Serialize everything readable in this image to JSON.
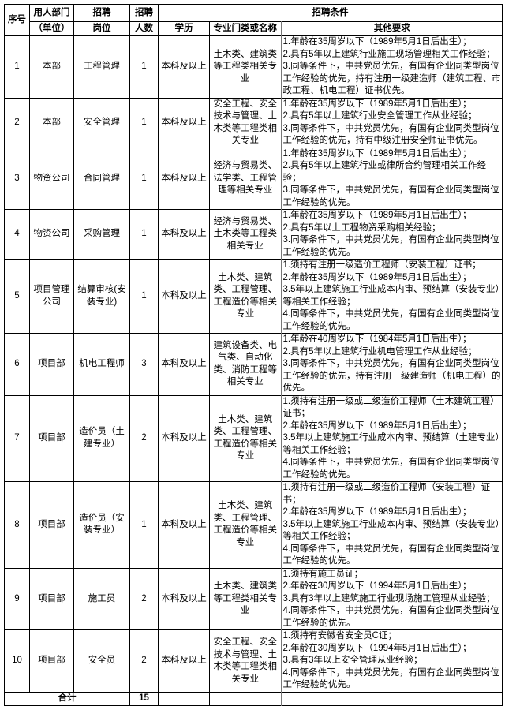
{
  "header": {
    "seq": "序号",
    "dept_line1": "用人部门",
    "dept_line2": "（单位）",
    "post_line1": "招聘",
    "post_line2": "岗位",
    "count_line1": "招聘",
    "count_line2": "人数",
    "conditions": "招聘条件",
    "education": "学历",
    "major": "专业门类或名称",
    "other": "其他要求"
  },
  "rows": [
    {
      "seq": "1",
      "dept": "本部",
      "post": "工程管理",
      "count": "1",
      "education": "本科及以上",
      "major": "土木类、建筑类等工程类相关专业",
      "requirements": [
        "1.年龄在35周岁以下（1989年5月1日后出生）；",
        "2.具有5年以上建筑行业施工现场管理相关工作经验；",
        "3.同等条件下，中共党员优先，有国有企业同类型岗位工作经验的优先，持有注册一级建造师（建筑工程、市政工程、机电工程）证书优先。"
      ]
    },
    {
      "seq": "2",
      "dept": "本部",
      "post": "安全管理",
      "count": "1",
      "education": "本科及以上",
      "major": "安全工程、安全技术与管理、土木类等工程类相关专业",
      "requirements": [
        "1.年龄在35周岁以下（1989年5月1日后出生）；",
        "2.具有5年以上建筑行业安全管理工作从业经验；",
        "3.同等条件下，中共党员优先，有国有企业同类型岗位工作经验的优先，持有中级注册安全师证书优先。"
      ]
    },
    {
      "seq": "3",
      "dept": "物资公司",
      "post": "合同管理",
      "count": "1",
      "education": "本科及以上",
      "major": "经济与贸易类、法学类、工程管理等相关专业",
      "requirements": [
        "1.年龄在35周岁以下（1989年5月1日后出生）；",
        "2.具有5年以上建筑行业或律所合约管理相关工作经验；",
        "3.同等条件下，中共党员优先，有国有企业同类型岗位工作经验的优先。"
      ]
    },
    {
      "seq": "4",
      "dept": "物资公司",
      "post": "采购管理",
      "count": "1",
      "education": "本科及以上",
      "major": "经济与贸易类、土木类等工程类相关专业",
      "requirements": [
        "1.年龄在35周岁以下（1989年5月1日后出生）；",
        "2.具有5年以上工程物资采购相关经验；",
        "3.同等条件下，中共党员优先，有国有企业同类型岗位工作经验的优先。"
      ]
    },
    {
      "seq": "5",
      "dept": "项目管理公司",
      "post": "结算审核(安装专业)",
      "count": "1",
      "education": "本科及以上",
      "major": "土木类、建筑类、工程管理、工程造价等相关专业",
      "requirements": [
        "1.须持有注册一级造价工程师（安装工程）证书；",
        "2.年龄在35周岁以下（1989年5月1日后出生）；",
        "3.5年以上建筑施工行业成本内审、预结算（安装专业）等相关工作经验；",
        "4.同等条件下，中共党员优先，有国有企业同类型岗位工作经验的优先。"
      ]
    },
    {
      "seq": "6",
      "dept": "项目部",
      "post": "机电工程师",
      "count": "3",
      "education": "本科及以上",
      "major": "建筑设备类、电气类、自动化类、消防工程等相关专业",
      "requirements": [
        "1.年龄在40周岁以下（1984年5月1日后出生）；",
        "2.具有5年以上建筑行业机电管理工作从业经验；",
        "3.同等条件下，中共党员优先，有国有企业同类型岗位工作经验的优先，持有注册一级建造师（机电工程）的优先。"
      ]
    },
    {
      "seq": "7",
      "dept": "项目部",
      "post": "造价员（土建专业）",
      "count": "2",
      "education": "本科及以上",
      "major": "土木类、建筑类、工程管理、工程造价等相关专业",
      "requirements": [
        "1.须持有注册一级或二级造价工程师（土木建筑工程）证书；",
        "2.年龄在35周岁以下（1989年5月1日后出生）；",
        "3.5年以上建筑施工行业成本内审、预结算（土建专业）等相关工作经验；",
        "4.同等条件下，中共党员优先，有国有企业同类型岗位工作经验的优先。"
      ]
    },
    {
      "seq": "8",
      "dept": "项目部",
      "post": "造价员（安装专业）",
      "count": "1",
      "education": "本科及以上",
      "major": "土木类、建筑类、工程管理、工程造价等相关专业",
      "requirements": [
        "1.须持有注册一级或二级造价工程师（安装工程）证书；",
        "2.年龄在35周岁以下（1989年5月1日后出生）；",
        "3.5年以上建筑施工行业成本内审、预结算（安装专业）等相关工作经验；",
        "4.同等条件下，中共党员优先，有国有企业同类型岗位工作经验的优先。"
      ]
    },
    {
      "seq": "9",
      "dept": "项目部",
      "post": "施工员",
      "count": "2",
      "education": "本科及以上",
      "major": "土木类、建筑类等工程类相关专业",
      "requirements": [
        "1.须持有施工员证；",
        "2.年龄在30周岁以下（1994年5月1日后出生）；",
        "3.具有3年以上建筑施工行业现场施工管理从业经验；",
        "4.同等条件下，中共党员优先，有国有企业同类型岗位工作经验的优先。"
      ]
    },
    {
      "seq": "10",
      "dept": "项目部",
      "post": "安全员",
      "count": "2",
      "education": "本科及以上",
      "major": "安全工程、安全技术与管理、土木类等工程类相关专业",
      "requirements": [
        "1.须持有安徽省安全员C证；",
        "2.年龄在30周岁以下（1994年5月1日后出生）；",
        "3.具有3年以上安全管理从业经验；",
        "4.同等条件下，中共党员优先，有国有企业同类型岗位工作经验的优先。"
      ]
    }
  ],
  "total": {
    "label": "合计",
    "count": "15"
  }
}
